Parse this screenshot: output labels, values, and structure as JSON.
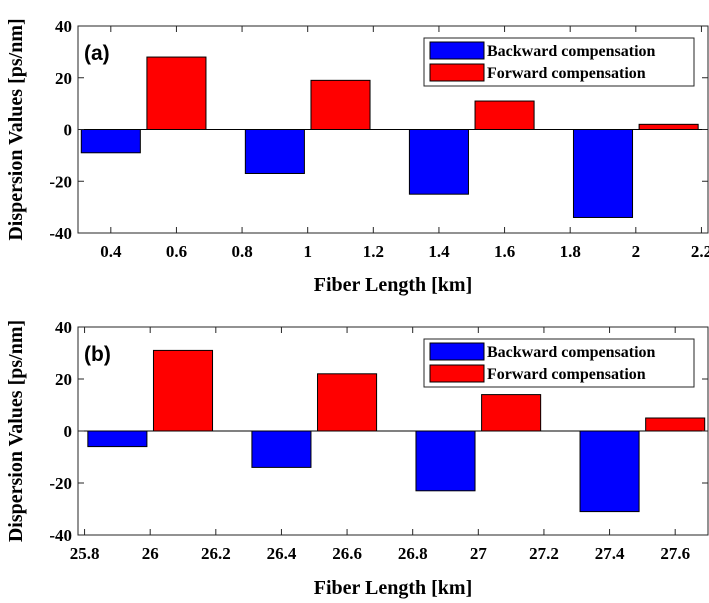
{
  "chart_data": [
    {
      "type": "bar",
      "panel_label": "(a)",
      "xlabel": "Fiber Length [km]",
      "ylabel": "Dispersion Values [ps/nm]",
      "xlim": [
        0.3,
        2.22
      ],
      "ylim": [
        -40,
        40
      ],
      "xticks": [
        0.4,
        0.6,
        0.8,
        1,
        1.2,
        1.4,
        1.6,
        1.8,
        2,
        2.2
      ],
      "xtick_labels": [
        "0.4",
        "0.6",
        "0.8",
        "1",
        "1.2",
        "1.4",
        "1.6",
        "1.8",
        "2",
        "2.2"
      ],
      "yticks": [
        -40,
        -20,
        0,
        20,
        40
      ],
      "ytick_labels": [
        "-40",
        "-20",
        "0",
        "20",
        "40"
      ],
      "bar_width": 0.18,
      "legend_position": "top-right",
      "grid": false,
      "series": [
        {
          "name": "Backward compensation",
          "color": "#0000ff",
          "x": [
            0.4,
            0.9,
            1.4,
            1.9
          ],
          "values": [
            -9,
            -17,
            -25,
            -34
          ]
        },
        {
          "name": "Forward compensation",
          "color": "#ff0000",
          "x": [
            0.6,
            1.1,
            1.6,
            2.1
          ],
          "values": [
            28,
            19,
            11,
            2
          ]
        }
      ]
    },
    {
      "type": "bar",
      "panel_label": "(b)",
      "xlabel": "Fiber Length [km]",
      "ylabel": "Dispersion Values [ps/nm]",
      "xlim": [
        25.78,
        27.7
      ],
      "ylim": [
        -40,
        40
      ],
      "xticks": [
        25.8,
        26,
        26.2,
        26.4,
        26.6,
        26.8,
        27,
        27.2,
        27.4,
        27.6
      ],
      "xtick_labels": [
        "25.8",
        "26",
        "26.2",
        "26.4",
        "26.6",
        "26.8",
        "27",
        "27.2",
        "27.4",
        "27.6"
      ],
      "yticks": [
        -40,
        -20,
        0,
        20,
        40
      ],
      "ytick_labels": [
        "-40",
        "-20",
        "0",
        "20",
        "40"
      ],
      "bar_width": 0.18,
      "legend_position": "top-right",
      "grid": false,
      "series": [
        {
          "name": "Backward compensation",
          "color": "#0000ff",
          "x": [
            25.9,
            26.4,
            26.9,
            27.4
          ],
          "values": [
            -6,
            -14,
            -23,
            -31
          ]
        },
        {
          "name": "Forward compensation",
          "color": "#ff0000",
          "x": [
            26.1,
            26.6,
            27.1,
            27.6
          ],
          "values": [
            31,
            22,
            14,
            5
          ]
        }
      ]
    }
  ]
}
